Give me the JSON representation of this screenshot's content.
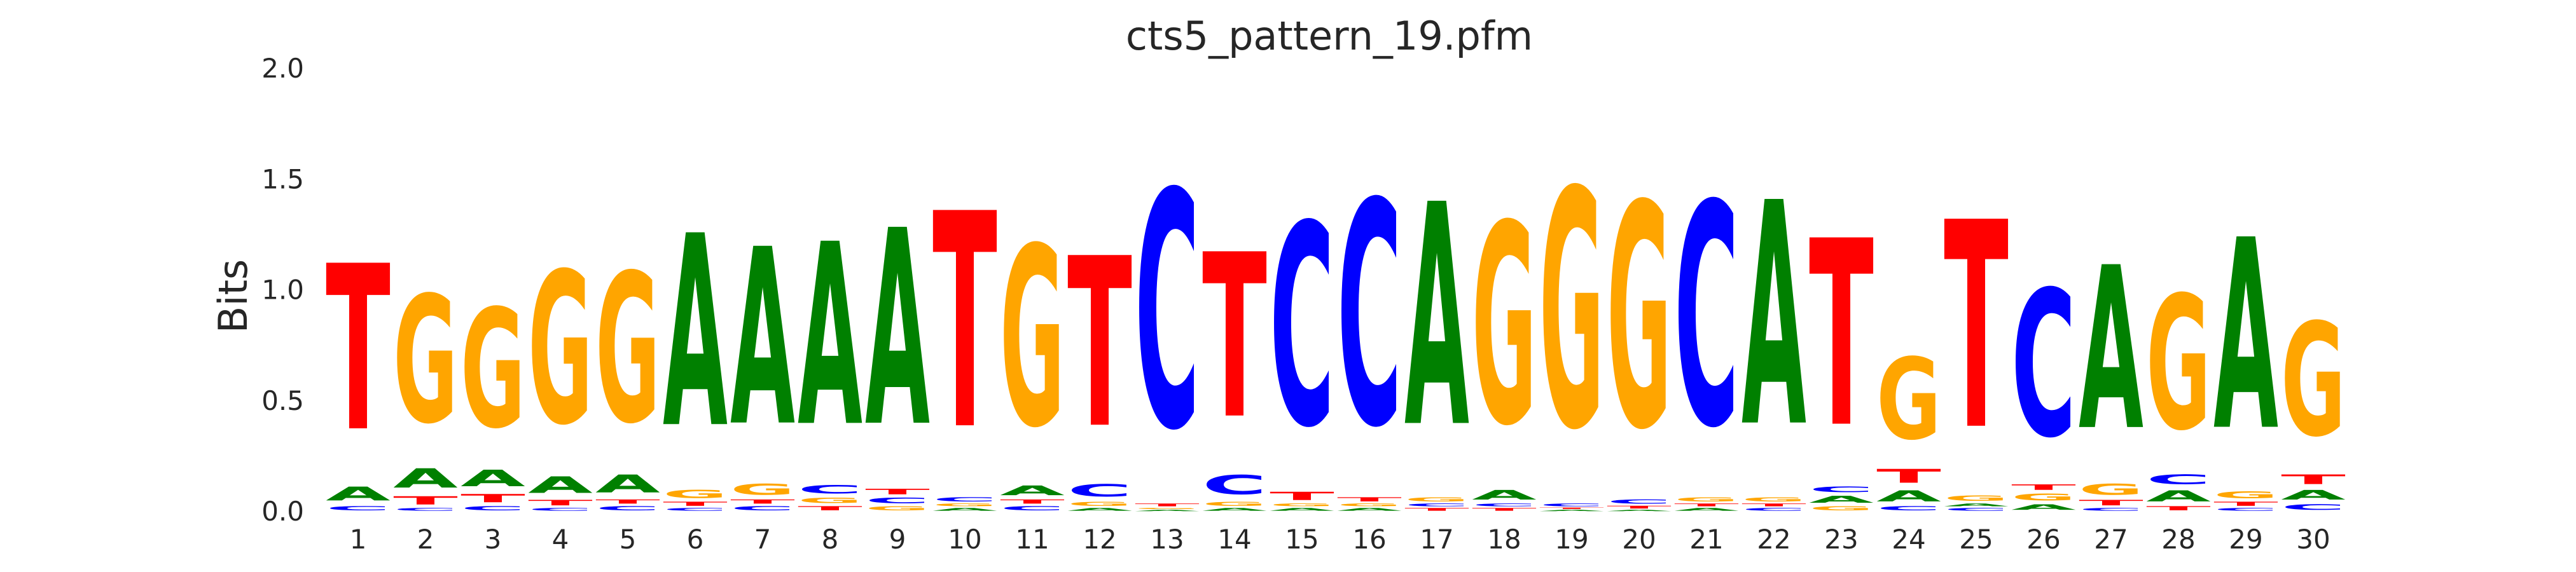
{
  "chart_data": {
    "type": "sequence-logo",
    "title": "cts5_pattern_19.pfm",
    "ylabel": "Bits",
    "xlabel": "",
    "ylim": [
      0,
      2.0
    ],
    "yticks": [
      "0.0",
      "0.5",
      "1.0",
      "1.5",
      "2.0"
    ],
    "xticks": [
      "1",
      "2",
      "3",
      "4",
      "5",
      "6",
      "7",
      "8",
      "9",
      "10",
      "11",
      "12",
      "13",
      "14",
      "15",
      "16",
      "17",
      "18",
      "19",
      "20",
      "21",
      "22",
      "23",
      "24",
      "25",
      "26",
      "27",
      "28",
      "29",
      "30"
    ],
    "grid": false,
    "colors": {
      "A": "#008000",
      "C": "#0000ff",
      "G": "#ffa500",
      "T": "#ff0000"
    },
    "positions": [
      [
        [
          "C",
          0.03
        ],
        [
          "A",
          0.1
        ],
        [
          "T",
          1.2
        ]
      ],
      [
        [
          "C",
          0.02
        ],
        [
          "T",
          0.06
        ],
        [
          "A",
          0.14
        ],
        [
          "G",
          0.92
        ]
      ],
      [
        [
          "C",
          0.03
        ],
        [
          "T",
          0.06
        ],
        [
          "A",
          0.12
        ],
        [
          "G",
          0.86
        ]
      ],
      [
        [
          "C",
          0.02
        ],
        [
          "T",
          0.04
        ],
        [
          "A",
          0.12
        ],
        [
          "G",
          1.1
        ]
      ],
      [
        [
          "C",
          0.03
        ],
        [
          "T",
          0.03
        ],
        [
          "A",
          0.13
        ],
        [
          "G",
          1.08
        ]
      ],
      [
        [
          "C",
          0.02
        ],
        [
          "T",
          0.03
        ],
        [
          "G",
          0.06
        ],
        [
          "A",
          1.39
        ]
      ],
      [
        [
          "C",
          0.03
        ],
        [
          "T",
          0.03
        ],
        [
          "G",
          0.08
        ],
        [
          "A",
          1.28
        ]
      ],
      [
        [
          "T",
          0.03
        ],
        [
          "G",
          0.04
        ],
        [
          "C",
          0.06
        ],
        [
          "A",
          1.32
        ]
      ],
      [
        [
          "G",
          0.03
        ],
        [
          "C",
          0.04
        ],
        [
          "T",
          0.04
        ],
        [
          "A",
          1.42
        ]
      ],
      [
        [
          "A",
          0.02
        ],
        [
          "G",
          0.02
        ],
        [
          "C",
          0.03
        ],
        [
          "T",
          1.56
        ]
      ],
      [
        [
          "C",
          0.03
        ],
        [
          "T",
          0.03
        ],
        [
          "A",
          0.07
        ],
        [
          "G",
          1.3
        ]
      ],
      [
        [
          "A",
          0.02
        ],
        [
          "G",
          0.03
        ],
        [
          "C",
          0.09
        ],
        [
          "T",
          1.23
        ]
      ],
      [
        [
          "A",
          0.01
        ],
        [
          "G",
          0.01
        ],
        [
          "T",
          0.02
        ],
        [
          "C",
          1.71
        ]
      ],
      [
        [
          "A",
          0.02
        ],
        [
          "G",
          0.03
        ],
        [
          "C",
          0.14
        ],
        [
          "T",
          1.19
        ]
      ],
      [
        [
          "A",
          0.02
        ],
        [
          "G",
          0.02
        ],
        [
          "T",
          0.06
        ],
        [
          "C",
          1.46
        ]
      ],
      [
        [
          "A",
          0.02
        ],
        [
          "G",
          0.02
        ],
        [
          "T",
          0.03
        ],
        [
          "C",
          1.62
        ]
      ],
      [
        [
          "T",
          0.02
        ],
        [
          "C",
          0.02
        ],
        [
          "G",
          0.03
        ],
        [
          "A",
          1.61
        ]
      ],
      [
        [
          "T",
          0.02
        ],
        [
          "C",
          0.02
        ],
        [
          "A",
          0.07
        ],
        [
          "G",
          1.45
        ]
      ],
      [
        [
          "A",
          0.01
        ],
        [
          "T",
          0.01
        ],
        [
          "C",
          0.02
        ],
        [
          "G",
          1.72
        ]
      ],
      [
        [
          "A",
          0.01
        ],
        [
          "T",
          0.02
        ],
        [
          "C",
          0.03
        ],
        [
          "G",
          1.62
        ]
      ],
      [
        [
          "A",
          0.02
        ],
        [
          "T",
          0.02
        ],
        [
          "G",
          0.03
        ],
        [
          "C",
          1.61
        ]
      ],
      [
        [
          "C",
          0.02
        ],
        [
          "T",
          0.02
        ],
        [
          "G",
          0.03
        ],
        [
          "A",
          1.62
        ]
      ],
      [
        [
          "G",
          0.03
        ],
        [
          "A",
          0.05
        ],
        [
          "C",
          0.04
        ],
        [
          "T",
          1.35
        ]
      ],
      [
        [
          "C",
          0.03
        ],
        [
          "A",
          0.08
        ],
        [
          "T",
          0.1
        ],
        [
          "G",
          0.59
        ]
      ],
      [
        [
          "C",
          0.02
        ],
        [
          "A",
          0.02
        ],
        [
          "G",
          0.04
        ],
        [
          "T",
          1.5
        ]
      ],
      [
        [
          "A",
          0.04
        ],
        [
          "G",
          0.05
        ],
        [
          "T",
          0.04
        ],
        [
          "C",
          1.06
        ]
      ],
      [
        [
          "C",
          0.02
        ],
        [
          "T",
          0.04
        ],
        [
          "G",
          0.08
        ],
        [
          "A",
          1.18
        ]
      ],
      [
        [
          "T",
          0.03
        ],
        [
          "A",
          0.08
        ],
        [
          "C",
          0.07
        ],
        [
          "G",
          0.97
        ]
      ],
      [
        [
          "C",
          0.02
        ],
        [
          "T",
          0.03
        ],
        [
          "G",
          0.05
        ],
        [
          "A",
          1.38
        ]
      ],
      [
        [
          "C",
          0.04
        ],
        [
          "A",
          0.07
        ],
        [
          "T",
          0.07
        ],
        [
          "G",
          0.82
        ]
      ]
    ]
  }
}
